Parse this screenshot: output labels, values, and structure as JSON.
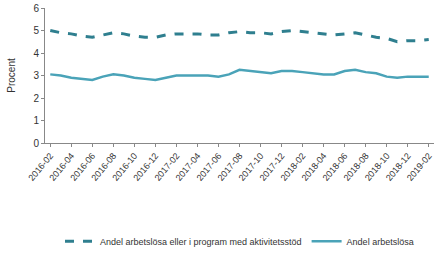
{
  "chart_data": {
    "type": "line",
    "y_label": "Procent",
    "categories": [
      "2016-02",
      null,
      "2016-04",
      null,
      "2016-06",
      null,
      "2016-08",
      null,
      "2016-10",
      null,
      "2016-12",
      null,
      "2017-02",
      null,
      "2017-04",
      null,
      "2017-06",
      null,
      "2017-08",
      null,
      "2017-10",
      null,
      "2017-12",
      null,
      "2018-02",
      null,
      "2018-04",
      null,
      "2018-06",
      null,
      "2018-08",
      null,
      "2018-10",
      null,
      "2018-12",
      null,
      "2019-02"
    ],
    "series": [
      {
        "name": "Andel arbetslösa eller i program med aktivitetsstöd",
        "color": "#2f7f8f",
        "line_style": "dash",
        "values": [
          5.0,
          4.9,
          4.85,
          4.75,
          4.7,
          4.8,
          4.9,
          4.85,
          4.75,
          4.7,
          4.7,
          4.8,
          4.85,
          4.85,
          4.85,
          4.8,
          4.8,
          4.9,
          4.95,
          4.9,
          4.9,
          4.85,
          4.95,
          5.0,
          4.95,
          4.9,
          4.85,
          4.8,
          4.85,
          4.9,
          4.8,
          4.7,
          4.65,
          4.5,
          4.55,
          4.55,
          4.6
        ]
      },
      {
        "name": "Andel arbetslösa",
        "color": "#4aa3b8",
        "line_style": "solid",
        "values": [
          3.05,
          3.0,
          2.9,
          2.85,
          2.8,
          2.95,
          3.05,
          3.0,
          2.9,
          2.85,
          2.8,
          2.9,
          3.0,
          3.0,
          3.0,
          3.0,
          2.95,
          3.05,
          3.25,
          3.2,
          3.15,
          3.1,
          3.2,
          3.2,
          3.15,
          3.1,
          3.05,
          3.05,
          3.2,
          3.25,
          3.15,
          3.1,
          2.95,
          2.9,
          2.95,
          2.95,
          2.95
        ]
      }
    ],
    "ylim": [
      0,
      6
    ],
    "yticks": [
      0,
      1,
      2,
      3,
      4,
      5,
      6
    ],
    "grid": false,
    "legend": "bottom"
  }
}
